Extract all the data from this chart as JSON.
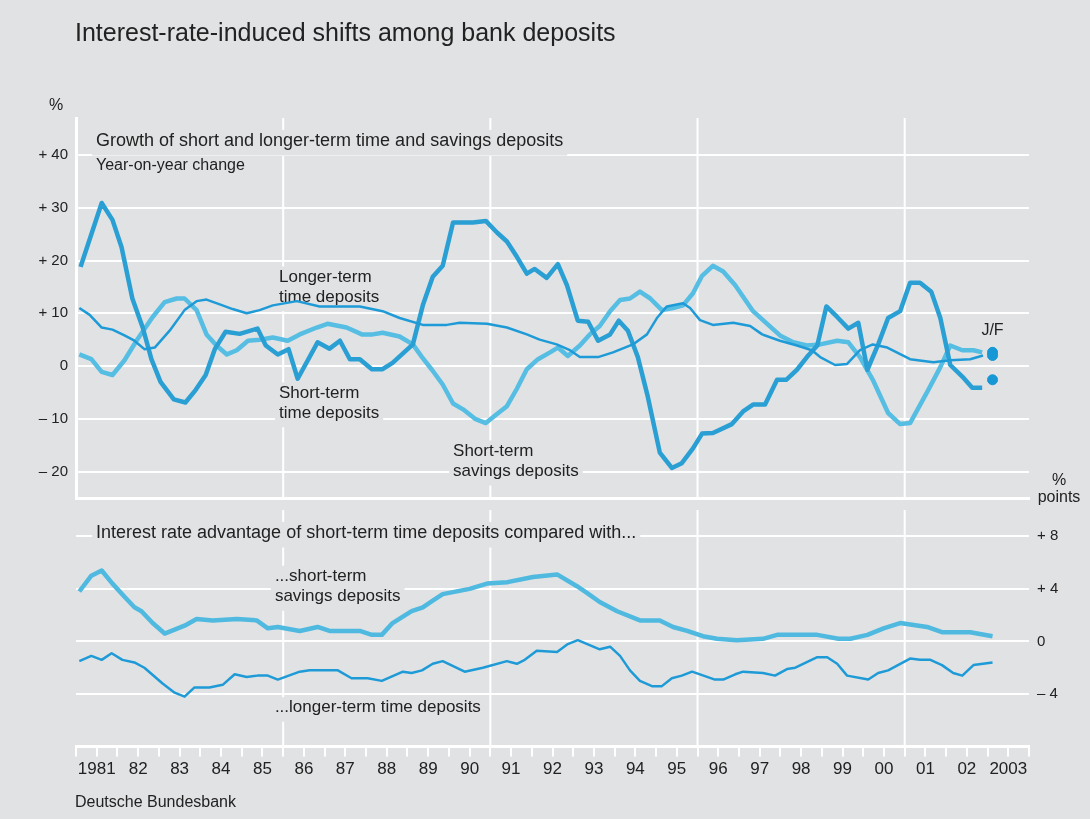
{
  "chart_data": [
    {
      "type": "line",
      "title": "Interest-rate-induced shifts among bank deposits",
      "subtitle": "Growth of short and longer-term time and savings deposits",
      "ylabel": "%",
      "annotations": [
        "Year-on-year change",
        "J/F"
      ],
      "xlim": [
        1980.5,
        2003.5
      ],
      "ylim": [
        -25,
        47
      ],
      "yticks": [
        {
          "value": 40,
          "label": "+ 40"
        },
        {
          "value": 30,
          "label": "+ 30"
        },
        {
          "value": 20,
          "label": "+ 20"
        },
        {
          "value": 10,
          "label": "+ 10"
        },
        0,
        {
          "value": -10,
          "label": "– 10"
        },
        {
          "value": -20,
          "label": "– 20"
        }
      ],
      "tick_labels": "y",
      "grid": "y",
      "marker": "none",
      "ref_lines": [
        {
          "axis": "x",
          "value": 1985.5,
          "color": "#ffffff"
        },
        {
          "axis": "x",
          "value": 1990.5,
          "color": "#ffffff"
        },
        {
          "axis": "x",
          "value": 1995.5,
          "color": "#ffffff"
        },
        {
          "axis": "x",
          "value": 2000.5,
          "color": "#ffffff"
        }
      ],
      "series": [
        {
          "name": "Longer-term time deposits",
          "color": "#1e9bd7",
          "x": [
            1980.58,
            1980.83,
            1981.12,
            1981.38,
            1981.67,
            1981.91,
            1982.15,
            1982.4,
            1982.76,
            1983.12,
            1983.41,
            1983.65,
            1983.97,
            1984.28,
            1984.62,
            1984.93,
            1985.25,
            1985.83,
            1986.38,
            1987.35,
            1987.9,
            1988.31,
            1988.87,
            1989.45,
            1989.76,
            1990.42,
            1990.9,
            1991.38,
            1991.69,
            1992.1,
            1992.42,
            1992.66,
            1993.1,
            1993.46,
            1993.94,
            1994.28,
            1994.52,
            1994.76,
            1995.15,
            1995.32,
            1995.56,
            1995.87,
            1996.36,
            1996.77,
            1997.06,
            1997.49,
            1997.9,
            1998.26,
            1998.46,
            1998.82,
            1999.11,
            1999.42,
            1999.73,
            2000.08,
            2000.63,
            2001.19,
            2001.6,
            2002.08,
            2002.39
          ],
          "values": [
            11.0,
            9.7,
            7.3,
            6.9,
            5.8,
            4.8,
            3.2,
            3.5,
            6.7,
            10.6,
            12.3,
            12.6,
            11.7,
            10.8,
            10.0,
            10.6,
            11.5,
            12.3,
            11.3,
            11.3,
            10.4,
            9.1,
            7.8,
            7.8,
            8.2,
            8.0,
            7.3,
            6.0,
            5.0,
            4.1,
            3.0,
            1.7,
            1.7,
            2.6,
            4.1,
            6.0,
            9.1,
            11.3,
            11.9,
            11.0,
            8.7,
            7.8,
            8.2,
            7.6,
            6.0,
            4.8,
            3.9,
            3.0,
            1.7,
            0.2,
            0.4,
            3.0,
            4.1,
            3.5,
            1.3,
            0.7,
            1.1,
            1.3,
            2.0
          ]
        },
        {
          "name": "Short-term time deposits",
          "color": "#2a9fd4",
          "x": [
            1980.61,
            1981.12,
            1981.38,
            1981.6,
            1981.86,
            1982.11,
            1982.32,
            1982.54,
            1982.86,
            1983.14,
            1983.39,
            1983.63,
            1983.85,
            1984.11,
            1984.45,
            1984.88,
            1985.08,
            1985.37,
            1985.63,
            1985.85,
            1986.33,
            1986.62,
            1986.87,
            1987.11,
            1987.35,
            1987.64,
            1987.9,
            1988.14,
            1988.63,
            1988.87,
            1989.11,
            1989.35,
            1989.6,
            1990.08,
            1990.39,
            1990.66,
            1990.9,
            1991.14,
            1991.38,
            1991.57,
            1991.86,
            1992.13,
            1992.35,
            1992.61,
            1992.86,
            1993.1,
            1993.39,
            1993.6,
            1993.82,
            1994.06,
            1994.3,
            1994.59,
            1994.88,
            1995.12,
            1995.39,
            1995.61,
            1995.87,
            1996.33,
            1996.6,
            1996.84,
            1997.13,
            1997.42,
            1997.64,
            1997.9,
            1998.14,
            1998.39,
            1998.61,
            1998.87,
            1999.14,
            1999.38,
            1999.6,
            1999.86,
            2000.1,
            2000.39,
            2000.63,
            2000.87,
            2001.14,
            2001.36,
            2001.6,
            2001.89,
            2002.13,
            2002.37
          ],
          "values": [
            18.8,
            30.9,
            27.7,
            22.5,
            12.8,
            7.3,
            1.3,
            -3.0,
            -6.3,
            -6.9,
            -4.5,
            -1.7,
            3.2,
            6.5,
            6.1,
            7.1,
            3.9,
            2.2,
            3.2,
            -2.4,
            4.5,
            3.3,
            4.8,
            1.3,
            1.3,
            -0.6,
            -0.6,
            0.6,
            4.1,
            11.5,
            16.9,
            19.0,
            27.2,
            27.2,
            27.5,
            25.3,
            23.6,
            20.7,
            17.5,
            18.4,
            16.7,
            19.3,
            15.3,
            8.6,
            8.4,
            4.8,
            6.0,
            8.6,
            6.7,
            1.7,
            -5.8,
            -16.4,
            -19.3,
            -18.4,
            -15.6,
            -12.8,
            -12.7,
            -11.0,
            -8.6,
            -7.3,
            -7.3,
            -2.6,
            -2.6,
            -0.7,
            1.7,
            3.9,
            11.3,
            9.3,
            7.1,
            8.2,
            -0.7,
            4.1,
            9.1,
            10.4,
            15.8,
            15.8,
            14.1,
            9.1,
            0.2,
            -2.0,
            -4.1,
            -4.1
          ]
        },
        {
          "name": "Short-term savings deposits",
          "color": "#56bde3",
          "x": [
            1980.58,
            1980.87,
            1981.12,
            1981.38,
            1981.67,
            1981.96,
            1982.35,
            1982.64,
            1982.93,
            1983.12,
            1983.41,
            1983.65,
            1983.89,
            1984.14,
            1984.38,
            1984.65,
            1984.93,
            1985.25,
            1985.61,
            1985.9,
            1986.31,
            1986.57,
            1987.03,
            1987.4,
            1987.66,
            1987.9,
            1988.31,
            1988.63,
            1988.85,
            1989.09,
            1989.35,
            1989.6,
            1989.84,
            1990.13,
            1990.39,
            1990.66,
            1990.9,
            1991.14,
            1991.38,
            1991.65,
            1991.94,
            1992.13,
            1992.37,
            1992.66,
            1992.9,
            1993.14,
            1993.39,
            1993.63,
            1993.87,
            1994.11,
            1994.36,
            1994.64,
            1994.91,
            1995.15,
            1995.39,
            1995.61,
            1995.87,
            1996.12,
            1996.41,
            1996.84,
            1997.08,
            1997.49,
            1997.81,
            1998.14,
            1998.46,
            1998.87,
            1999.14,
            1999.42,
            1999.73,
            2000.1,
            2000.39,
            2000.63,
            2001.07,
            2001.36,
            2001.6,
            2001.89,
            2002.16,
            2002.37
          ],
          "values": [
            2.2,
            1.3,
            -1.1,
            -1.7,
            1.1,
            4.8,
            9.3,
            12.1,
            12.8,
            12.8,
            10.6,
            6.0,
            3.9,
            2.2,
            3.0,
            4.8,
            5.0,
            5.4,
            4.8,
            6.0,
            7.3,
            8.0,
            7.3,
            6.0,
            6.0,
            6.3,
            5.6,
            4.1,
            1.7,
            -0.7,
            -3.5,
            -7.1,
            -8.2,
            -10.0,
            -10.8,
            -9.1,
            -7.6,
            -4.3,
            -0.6,
            1.3,
            2.6,
            3.5,
            1.9,
            3.9,
            6.0,
            7.6,
            10.4,
            12.5,
            12.8,
            14.1,
            12.8,
            10.6,
            11.0,
            11.5,
            13.8,
            17.1,
            19.0,
            17.9,
            15.3,
            10.4,
            8.7,
            5.8,
            4.5,
            3.9,
            4.1,
            4.8,
            4.5,
            1.7,
            -2.6,
            -8.9,
            -11.0,
            -10.8,
            -4.5,
            -0.2,
            3.9,
            3.0,
            3.0,
            2.6
          ]
        },
        {
          "type": "scatter",
          "marker": "circle",
          "color": "#1598d5",
          "x": [
            2002.62,
            2002.62,
            2002.62
          ],
          "values": [
            2.6,
            2.0,
            -2.6
          ]
        }
      ]
    },
    {
      "type": "line",
      "title": "Interest rate advantage of short-term time deposits compared with...",
      "y2label": "% points",
      "annotations": [
        "Deutsche Bundesbank"
      ],
      "xlim": [
        1980.5,
        2003.5
      ],
      "y2lim": [
        -8,
        10
      ],
      "xticks": [
        {
          "value": 1980.5,
          "label": null
        },
        1981,
        {
          "value": 1981.5,
          "label": null
        },
        {
          "value": 1982,
          "label": "82"
        },
        {
          "value": 1982.5,
          "label": null
        },
        {
          "value": 1983,
          "label": "83"
        },
        {
          "value": 1983.5,
          "label": null
        },
        {
          "value": 1984,
          "label": "84"
        },
        {
          "value": 1984.5,
          "label": null
        },
        {
          "value": 1985,
          "label": "85"
        },
        {
          "value": 1985.5,
          "label": null
        },
        {
          "value": 1986,
          "label": "86"
        },
        {
          "value": 1986.5,
          "label": null
        },
        {
          "value": 1987,
          "label": "87"
        },
        {
          "value": 1987.5,
          "label": null
        },
        {
          "value": 1988,
          "label": "88"
        },
        {
          "value": 1988.5,
          "label": null
        },
        {
          "value": 1989,
          "label": "89"
        },
        {
          "value": 1989.5,
          "label": null
        },
        {
          "value": 1990,
          "label": "90"
        },
        {
          "value": 1990.5,
          "label": null
        },
        {
          "value": 1991,
          "label": "91"
        },
        {
          "value": 1991.5,
          "label": null
        },
        {
          "value": 1992,
          "label": "92"
        },
        {
          "value": 1992.5,
          "label": null
        },
        {
          "value": 1993,
          "label": "93"
        },
        {
          "value": 1993.5,
          "label": null
        },
        {
          "value": 1994,
          "label": "94"
        },
        {
          "value": 1994.5,
          "label": null
        },
        {
          "value": 1995,
          "label": "95"
        },
        {
          "value": 1995.5,
          "label": null
        },
        {
          "value": 1996,
          "label": "96"
        },
        {
          "value": 1996.5,
          "label": null
        },
        {
          "value": 1997,
          "label": "97"
        },
        {
          "value": 1997.5,
          "label": null
        },
        {
          "value": 1998,
          "label": "98"
        },
        {
          "value": 1998.5,
          "label": null
        },
        {
          "value": 1999,
          "label": "99"
        },
        {
          "value": 1999.5,
          "label": null
        },
        {
          "value": 2000,
          "label": "00"
        },
        {
          "value": 2000.5,
          "label": null
        },
        {
          "value": 2001,
          "label": "01"
        },
        {
          "value": 2001.5,
          "label": null
        },
        {
          "value": 2002,
          "label": "02"
        },
        {
          "value": 2002.5,
          "label": null
        },
        2003,
        {
          "value": 2003.5,
          "label": null
        }
      ],
      "y2ticks": [
        {
          "value": 8,
          "label": "+ 8"
        },
        {
          "value": 4,
          "label": "+ 4"
        },
        0,
        {
          "value": -4,
          "label": "– 4"
        }
      ],
      "grid": "y",
      "marker": "none",
      "ref_lines": [
        {
          "axis": "x",
          "value": 1985.5,
          "color": "#ffffff"
        },
        {
          "axis": "x",
          "value": 1990.5,
          "color": "#ffffff"
        },
        {
          "axis": "x",
          "value": 1995.5,
          "color": "#ffffff"
        },
        {
          "axis": "x",
          "value": 2000.5,
          "color": "#ffffff"
        }
      ],
      "series": [
        {
          "name": "...short-term savings deposits",
          "axis": "y2",
          "color": "#4fb9e0",
          "x": [
            1980.58,
            1980.87,
            1981.12,
            1981.38,
            1981.67,
            1981.91,
            1982.08,
            1982.35,
            1982.64,
            1983.12,
            1983.41,
            1983.8,
            1984.38,
            1984.86,
            1985.13,
            1985.37,
            1985.9,
            1986.33,
            1986.62,
            1987.35,
            1987.64,
            1987.88,
            1988.14,
            1988.6,
            1988.87,
            1989.11,
            1989.35,
            1990.0,
            1990.42,
            1990.9,
            1991.53,
            1992.11,
            1992.59,
            1992.83,
            1993.14,
            1993.56,
            1994.11,
            1994.59,
            1994.91,
            1995.25,
            1995.63,
            1995.97,
            1996.45,
            1997.08,
            1997.42,
            1998.39,
            1998.9,
            1999.19,
            1999.6,
            1999.99,
            2000.39,
            2001.04,
            2001.4,
            2002.08,
            2002.62
          ],
          "values": [
            3.8,
            5.0,
            5.4,
            4.4,
            3.4,
            2.6,
            2.3,
            1.4,
            0.6,
            1.2,
            1.7,
            1.6,
            1.7,
            1.6,
            1.0,
            1.1,
            0.8,
            1.1,
            0.8,
            0.8,
            0.5,
            0.5,
            1.4,
            2.3,
            2.6,
            3.1,
            3.6,
            4.0,
            4.4,
            4.5,
            4.9,
            5.1,
            4.2,
            3.7,
            3.0,
            2.3,
            1.6,
            1.6,
            1.1,
            0.8,
            0.4,
            0.2,
            0.1,
            0.2,
            0.5,
            0.5,
            0.2,
            0.2,
            0.5,
            1.0,
            1.4,
            1.1,
            0.7,
            0.7,
            0.4
          ]
        },
        {
          "name": "...longer-term time deposits",
          "axis": "y2",
          "color": "#1e9bd7",
          "x": [
            1980.58,
            1980.87,
            1981.12,
            1981.36,
            1981.62,
            1981.91,
            1982.15,
            1982.59,
            1982.88,
            1983.12,
            1983.36,
            1983.72,
            1984.04,
            1984.33,
            1984.62,
            1984.88,
            1985.13,
            1985.37,
            1985.9,
            1986.14,
            1986.82,
            1987.15,
            1987.54,
            1987.88,
            1988.39,
            1988.6,
            1988.85,
            1989.11,
            1989.35,
            1989.88,
            1990.32,
            1990.9,
            1991.14,
            1991.33,
            1991.62,
            1992.11,
            1992.37,
            1992.61,
            1993.14,
            1993.39,
            1993.63,
            1993.87,
            1994.11,
            1994.4,
            1994.64,
            1994.88,
            1995.12,
            1995.37,
            1995.92,
            1996.12,
            1996.41,
            1996.6,
            1997.08,
            1997.37,
            1997.66,
            1997.86,
            1998.39,
            1998.63,
            1998.87,
            1999.11,
            1999.62,
            1999.86,
            2000.1,
            2000.63,
            2000.87,
            2001.12,
            2001.4,
            2001.67,
            2001.89,
            2002.16,
            2002.62
          ],
          "values": [
            -1.5,
            -1.1,
            -1.4,
            -0.9,
            -1.4,
            -1.6,
            -2.0,
            -3.2,
            -3.9,
            -4.2,
            -3.5,
            -3.5,
            -3.3,
            -2.5,
            -2.7,
            -2.6,
            -2.6,
            -2.9,
            -2.3,
            -2.2,
            -2.2,
            -2.8,
            -2.8,
            -3.0,
            -2.3,
            -2.4,
            -2.2,
            -1.7,
            -1.5,
            -2.3,
            -2.0,
            -1.5,
            -1.7,
            -1.4,
            -0.7,
            -0.8,
            -0.2,
            0.1,
            -0.6,
            -0.4,
            -1.1,
            -2.2,
            -3.0,
            -3.4,
            -3.4,
            -2.8,
            -2.6,
            -2.3,
            -2.9,
            -2.9,
            -2.5,
            -2.3,
            -2.4,
            -2.6,
            -2.1,
            -2.0,
            -1.2,
            -1.2,
            -1.7,
            -2.6,
            -2.9,
            -2.4,
            -2.2,
            -1.3,
            -1.4,
            -1.4,
            -1.8,
            -2.4,
            -2.6,
            -1.8,
            -1.6
          ]
        }
      ]
    }
  ]
}
